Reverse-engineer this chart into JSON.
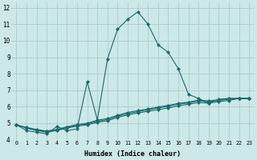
{
  "xlabel": "Humidex (Indice chaleur)",
  "bg_color": "#cce8e8",
  "grid_color": "#aacccc",
  "line_color": "#1a6b6b",
  "xlim": [
    -0.5,
    23.5
  ],
  "ylim": [
    4,
    12.3
  ],
  "xticks": [
    0,
    1,
    2,
    3,
    4,
    5,
    6,
    7,
    8,
    9,
    10,
    11,
    12,
    13,
    14,
    15,
    16,
    17,
    18,
    19,
    20,
    21,
    22,
    23
  ],
  "yticks": [
    4,
    5,
    6,
    7,
    8,
    9,
    10,
    11,
    12
  ],
  "series": [
    [
      4.9,
      4.55,
      4.45,
      4.35,
      4.8,
      4.55,
      4.65,
      7.5,
      5.2,
      8.9,
      10.7,
      11.3,
      11.75,
      11.0,
      9.75,
      9.3,
      8.3,
      6.75,
      6.5,
      6.2,
      6.45,
      6.5,
      6.5,
      6.5
    ],
    [
      4.9,
      4.7,
      4.55,
      4.45,
      4.55,
      4.7,
      4.82,
      4.9,
      5.05,
      5.15,
      5.35,
      5.5,
      5.62,
      5.72,
      5.82,
      5.92,
      6.05,
      6.15,
      6.25,
      6.22,
      6.3,
      6.38,
      6.5,
      6.5
    ],
    [
      4.9,
      4.72,
      4.58,
      4.5,
      4.6,
      4.75,
      4.88,
      4.95,
      5.12,
      5.22,
      5.42,
      5.58,
      5.7,
      5.8,
      5.92,
      6.02,
      6.15,
      6.22,
      6.35,
      6.3,
      6.38,
      6.45,
      6.5,
      6.5
    ],
    [
      4.9,
      4.74,
      4.62,
      4.52,
      4.62,
      4.78,
      4.92,
      5.0,
      5.18,
      5.28,
      5.48,
      5.65,
      5.76,
      5.86,
      5.98,
      6.08,
      6.2,
      6.28,
      6.4,
      6.35,
      6.42,
      6.48,
      6.5,
      6.5
    ]
  ]
}
